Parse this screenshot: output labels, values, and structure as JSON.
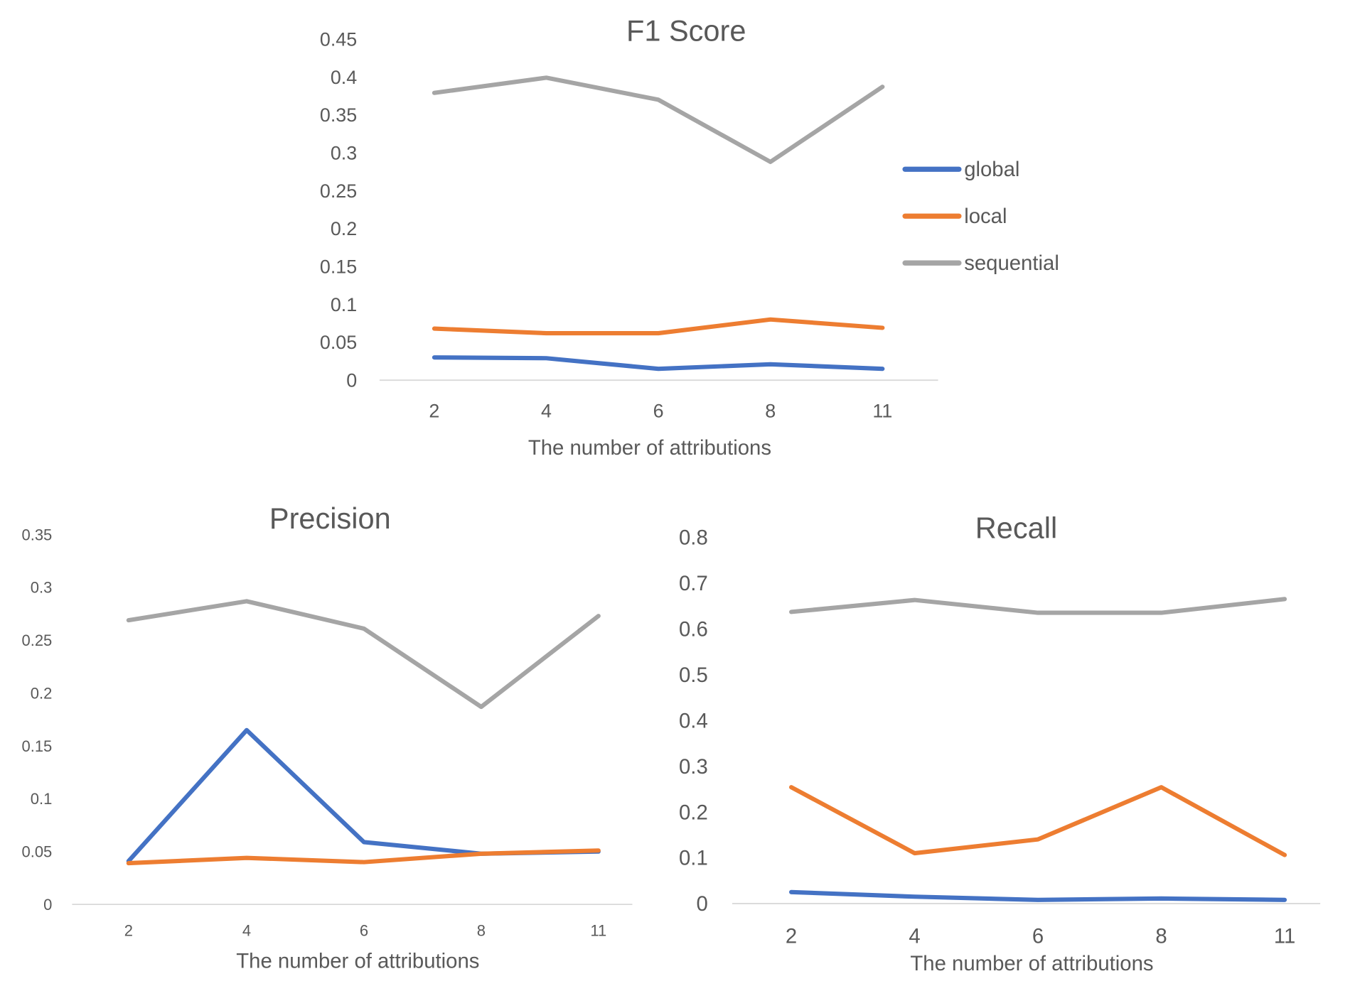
{
  "colors": {
    "global": "#4472C4",
    "local": "#ED7D31",
    "sequential": "#A5A5A5"
  },
  "chart_data": [
    {
      "type": "line",
      "title": "F1 Score",
      "xlabel": "The number of attributions",
      "ylabel": "",
      "categories": [
        "2",
        "4",
        "6",
        "8",
        "11"
      ],
      "ylim": [
        0,
        0.45
      ],
      "yticks": [
        "0",
        "0.05",
        "0.1",
        "0.15",
        "0.2",
        "0.25",
        "0.3",
        "0.35",
        "0.4",
        "0.45"
      ],
      "legend": "right",
      "grid": false,
      "series": [
        {
          "name": "global",
          "values": [
            0.03,
            0.029,
            0.015,
            0.021,
            0.015
          ]
        },
        {
          "name": "local",
          "values": [
            0.068,
            0.062,
            0.062,
            0.08,
            0.069
          ]
        },
        {
          "name": "sequential",
          "values": [
            0.379,
            0.399,
            0.37,
            0.288,
            0.387
          ]
        }
      ]
    },
    {
      "type": "line",
      "title": "Precision",
      "xlabel": "The number of attributions",
      "ylabel": "",
      "categories": [
        "2",
        "4",
        "6",
        "8",
        "11"
      ],
      "ylim": [
        0,
        0.35
      ],
      "yticks": [
        "0",
        "0.05",
        "0.1",
        "0.15",
        "0.2",
        "0.25",
        "0.3",
        "0.35"
      ],
      "grid": false,
      "series": [
        {
          "name": "global",
          "values": [
            0.041,
            0.165,
            0.059,
            0.048,
            0.05
          ]
        },
        {
          "name": "local",
          "values": [
            0.039,
            0.044,
            0.04,
            0.048,
            0.051
          ]
        },
        {
          "name": "sequential",
          "values": [
            0.269,
            0.287,
            0.261,
            0.187,
            0.273
          ]
        }
      ]
    },
    {
      "type": "line",
      "title": "Recall",
      "xlabel": "The number of attributions",
      "ylabel": "",
      "categories": [
        "2",
        "4",
        "6",
        "8",
        "11"
      ],
      "ylim": [
        0,
        0.8
      ],
      "yticks": [
        "0",
        "0.1",
        "0.2",
        "0.3",
        "0.4",
        "0.5",
        "0.6",
        "0.7",
        "0.8"
      ],
      "grid": false,
      "series": [
        {
          "name": "global",
          "values": [
            0.025,
            0.015,
            0.008,
            0.011,
            0.008
          ]
        },
        {
          "name": "local",
          "values": [
            0.254,
            0.11,
            0.14,
            0.254,
            0.106
          ]
        },
        {
          "name": "sequential",
          "values": [
            0.637,
            0.663,
            0.635,
            0.635,
            0.665
          ]
        }
      ]
    }
  ]
}
